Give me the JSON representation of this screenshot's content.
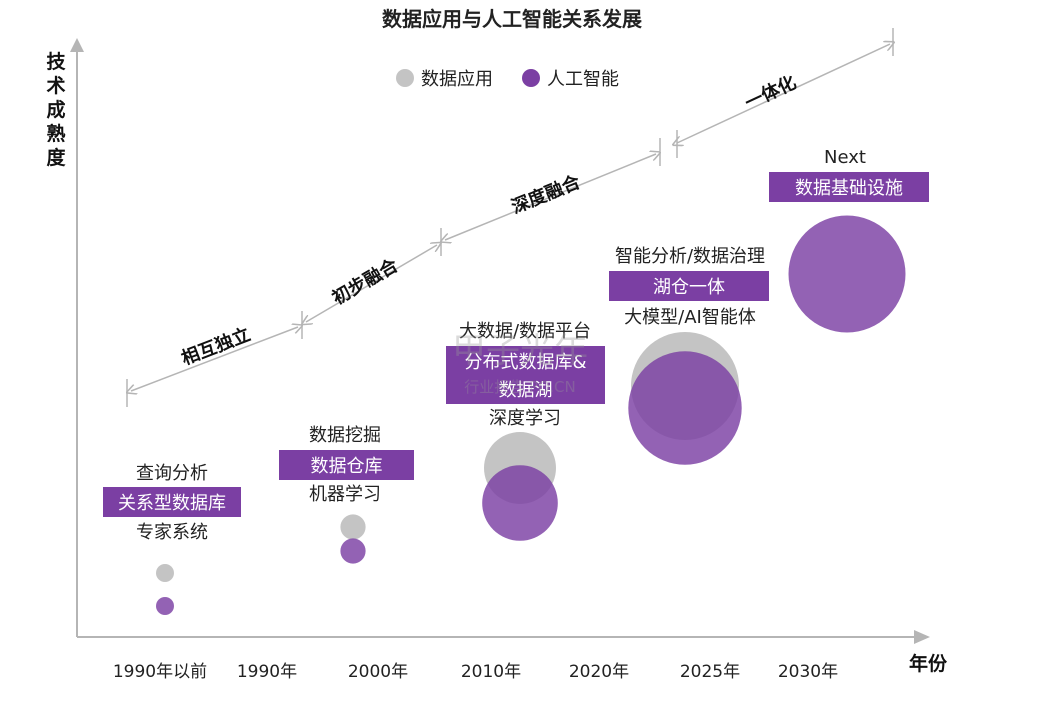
{
  "chart_data": {
    "type": "bubble-timeline",
    "title": "数据应用与人工智能关系发展",
    "ylabel": "技术成熟度",
    "xlabel": "年份",
    "x_ticks": [
      "1990年以前",
      "1990年",
      "2000年",
      "2010年",
      "2020年",
      "2025年",
      "2030年"
    ],
    "legend": [
      {
        "name": "数据应用",
        "color": "#c4c4c4"
      },
      {
        "name": "人工智能",
        "color": "#7b3fa3"
      }
    ],
    "phases": [
      "相互独立",
      "初步融合",
      "深度融合",
      "一体化"
    ],
    "stages": [
      {
        "period": "1990年以前",
        "top_text": "查询分析",
        "highlight": "关系型数据库",
        "bottom_text": "专家系统",
        "data_size": 1,
        "ai_size": 1
      },
      {
        "period": "1990-2000年",
        "top_text": "数据挖掘",
        "highlight": "数据仓库",
        "bottom_text": "机器学习",
        "data_size": 1.4,
        "ai_size": 1.4
      },
      {
        "period": "2010年",
        "top_text": "大数据/数据平台",
        "highlight": "分布式数据库&数据湖",
        "highlight_lines": [
          "分布式数据库&",
          "数据湖"
        ],
        "bottom_text": "深度学习",
        "data_size": 4,
        "ai_size": 4.2
      },
      {
        "period": "2020-2025年",
        "top_text": "智能分析/数据治理",
        "highlight": "湖仓一体",
        "bottom_text": "大模型/AI智能体",
        "data_size": 6,
        "ai_size": 6.3
      },
      {
        "period": "2030年",
        "top_text": "Next",
        "highlight": "数据基础设施",
        "bottom_text": "",
        "data_size": null,
        "ai_size": 6.5
      }
    ],
    "colors": {
      "data": "#c4c4c4",
      "ai": "#7b3fa3",
      "label_bg": "#7b3fa3",
      "label_text": "#ffffff",
      "axis": "#b5b5b5"
    }
  },
  "watermark": {
    "brand": "甲子光年",
    "site": "行业报告",
    "url": "PO.CN"
  }
}
